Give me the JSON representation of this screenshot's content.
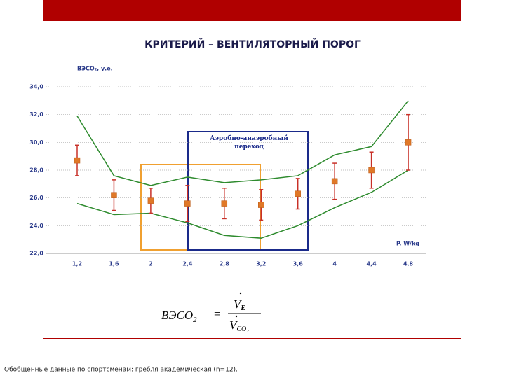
{
  "title": "КРИТЕРИЙ – ВЕНТИЛЯТОРНЫЙ ПОРОГ",
  "chart_data": {
    "type": "line",
    "y_axis_label": "ВЭСО₂, у.е.",
    "x_axis_label": "P, W/kg",
    "annotation": "Аэробно-анаэробный переход",
    "categories": [
      "1,2",
      "1,6",
      "2",
      "2,4",
      "2,8",
      "3,2",
      "3,6",
      "4",
      "4,4",
      "4,8"
    ],
    "ylim": [
      22,
      34
    ],
    "yticks": [
      {
        "value": 22,
        "label": "22,0"
      },
      {
        "value": 24,
        "label": "24,0"
      },
      {
        "value": 26,
        "label": "26,0"
      },
      {
        "value": 28,
        "label": "28,0"
      },
      {
        "value": 30,
        "label": "30,0"
      },
      {
        "value": 32,
        "label": "32,0"
      },
      {
        "value": 34,
        "label": "34,0"
      }
    ],
    "grid": true,
    "series": [
      {
        "color": "#2e8b2e",
        "values": [
          31.9,
          27.6,
          26.9,
          27.5,
          27.1,
          27.3,
          27.6,
          29.1,
          29.7,
          33.0
        ]
      },
      {
        "color": "#2e8b2e",
        "values": [
          25.6,
          24.8,
          24.9,
          24.2,
          23.3,
          23.1,
          24.0,
          25.3,
          26.4,
          28.0
        ]
      },
      {
        "color": "#e07828",
        "marker": "square",
        "error_color": "#c83028",
        "values": [
          28.7,
          26.2,
          25.8,
          25.6,
          25.6,
          25.5,
          26.3,
          27.2,
          28.0,
          30.0
        ],
        "errors": [
          1.1,
          1.1,
          0.9,
          1.3,
          1.1,
          1.1,
          1.1,
          1.3,
          1.3,
          2.0
        ]
      }
    ]
  },
  "formula": {
    "lhs": "ВЭСО",
    "lhs_sub": "2",
    "equals": "=",
    "numerator": "V",
    "numerator_sub": "E",
    "denominator": "V",
    "denominator_sub": "CO₂"
  },
  "footer": "Обобщенные данные по спортсменам: гребля академическая (n=12)."
}
